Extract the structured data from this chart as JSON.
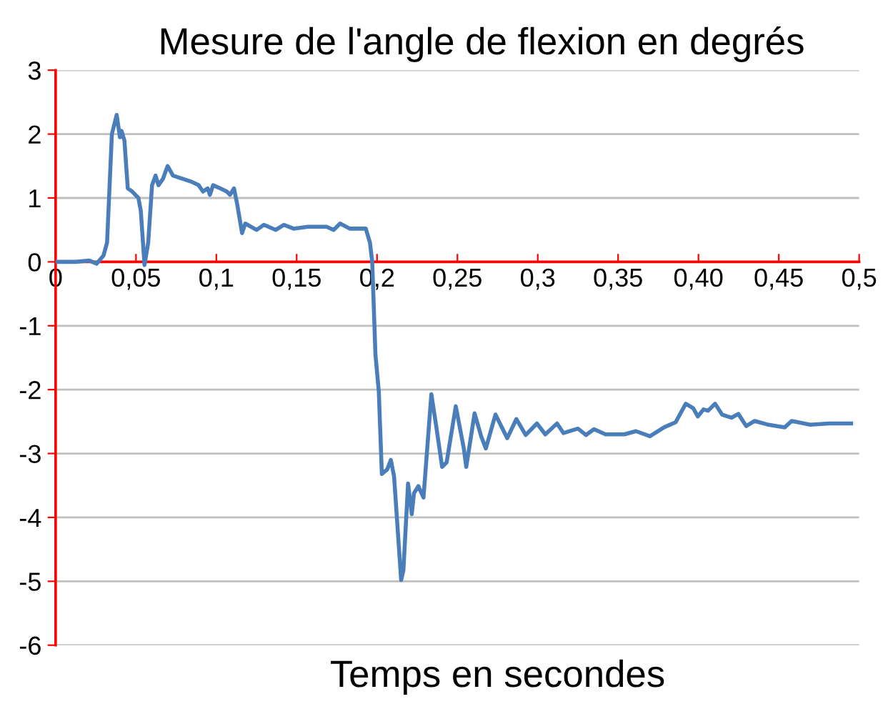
{
  "chart_data": {
    "type": "line",
    "title": "Mesure de l'angle de flexion en degrés",
    "xlabel": "Temps en secondes",
    "series": [
      {
        "color": "#4a7ebb",
        "x": [
          0,
          0.0124,
          0.021,
          0.0255,
          0.0298,
          0.032,
          0.035,
          0.038,
          0.04,
          0.041,
          0.0428,
          0.0449,
          0.0477,
          0.0515,
          0.053,
          0.0553,
          0.0576,
          0.06,
          0.0622,
          0.064,
          0.0668,
          0.0697,
          0.073,
          0.079,
          0.085,
          0.089,
          0.0917,
          0.0946,
          0.096,
          0.098,
          0.1024,
          0.1065,
          0.1085,
          0.111,
          0.113,
          0.116,
          0.118,
          0.125,
          0.1296,
          0.137,
          0.142,
          0.148,
          0.157,
          0.1686,
          0.173,
          0.177,
          0.183,
          0.193,
          0.1956,
          0.197,
          0.199,
          0.2011,
          0.203,
          0.2063,
          0.2086,
          0.2106,
          0.215,
          0.2164,
          0.2193,
          0.2216,
          0.223,
          0.2257,
          0.2289,
          0.2338,
          0.2367,
          0.2405,
          0.2433,
          0.249,
          0.254,
          0.2555,
          0.2607,
          0.2648,
          0.2677,
          0.2737,
          0.281,
          0.2867,
          0.2925,
          0.2995,
          0.3047,
          0.312,
          0.316,
          0.325,
          0.33,
          0.335,
          0.3422,
          0.3539,
          0.3611,
          0.3698,
          0.3786,
          0.3858,
          0.3921,
          0.3967,
          0.3996,
          0.4031,
          0.406,
          0.4103,
          0.4147,
          0.4205,
          0.4248,
          0.4297,
          0.435,
          0.4436,
          0.4537,
          0.458,
          0.4696,
          0.4812,
          0.495
        ],
        "values": [
          0,
          0,
          0.02,
          -0.03,
          0.1,
          0.3,
          2.0,
          2.3,
          1.95,
          2.05,
          1.9,
          1.15,
          1.1,
          1.0,
          0.8,
          -0.05,
          0.3,
          1.2,
          1.35,
          1.2,
          1.3,
          1.5,
          1.35,
          1.3,
          1.25,
          1.2,
          1.1,
          1.15,
          1.05,
          1.2,
          1.15,
          1.1,
          1.05,
          1.15,
          0.9,
          0.45,
          0.6,
          0.5,
          0.58,
          0.5,
          0.58,
          0.52,
          0.55,
          0.55,
          0.5,
          0.6,
          0.52,
          0.52,
          0.3,
          0.0,
          -1.45,
          -2.03,
          -3.32,
          -3.25,
          -3.1,
          -3.36,
          -4.98,
          -4.83,
          -3.47,
          -3.95,
          -3.62,
          -3.51,
          -3.69,
          -2.07,
          -2.55,
          -3.21,
          -3.14,
          -2.26,
          -2.92,
          -3.21,
          -2.37,
          -2.73,
          -2.92,
          -2.39,
          -2.76,
          -2.46,
          -2.71,
          -2.53,
          -2.7,
          -2.53,
          -2.68,
          -2.61,
          -2.71,
          -2.62,
          -2.7,
          -2.7,
          -2.65,
          -2.73,
          -2.59,
          -2.51,
          -2.22,
          -2.29,
          -2.42,
          -2.31,
          -2.33,
          -2.22,
          -2.39,
          -2.44,
          -2.38,
          -2.57,
          -2.49,
          -2.55,
          -2.59,
          -2.49,
          -2.55,
          -2.53,
          -2.53
        ]
      }
    ],
    "xlim": [
      0,
      0.5
    ],
    "xticks": [
      0,
      {
        "value": 0.05,
        "label": "0,05"
      },
      {
        "value": 0.1,
        "label": "0,1"
      },
      {
        "value": 0.15,
        "label": "0,15"
      },
      {
        "value": 0.2,
        "label": "0,2"
      },
      {
        "value": 0.25,
        "label": "0,25"
      },
      {
        "value": 0.3,
        "label": "0,3"
      },
      {
        "value": 0.35,
        "label": "0,35"
      },
      {
        "value": 0.4,
        "label": "0,40"
      },
      {
        "value": 0.45,
        "label": "0,45"
      },
      {
        "value": 0.5,
        "label": "0,5"
      }
    ],
    "ylim": [
      -6,
      3
    ],
    "yticks": [
      -6,
      -5,
      -4,
      -3,
      -2,
      -1,
      0,
      1,
      2,
      3
    ],
    "grid": "y",
    "legend": false,
    "marker": "none",
    "line_style": "solid"
  }
}
